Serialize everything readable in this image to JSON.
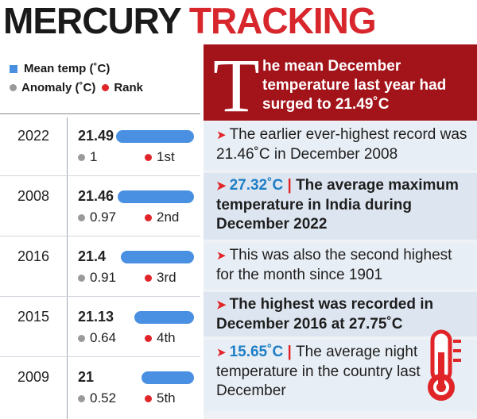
{
  "headline": {
    "word1": "MERCURY",
    "word2": "TRACKING"
  },
  "legend": {
    "mean": "Mean temp (˚C)",
    "anomaly": "Anomaly (˚C)",
    "rank": "Rank"
  },
  "colors": {
    "bar": "#4a90e2",
    "accent_red": "#e02428",
    "banner_red": "#a3131a",
    "anomaly_dot": "#9a9a9a",
    "highlight_blue": "#1f7ec5"
  },
  "chart_data": {
    "type": "bar",
    "categories": [
      "2022",
      "2008",
      "2016",
      "2015",
      "2009"
    ],
    "series": [
      {
        "name": "Mean temp (˚C)",
        "values": [
          21.49,
          21.46,
          21.4,
          21.13,
          21
        ],
        "labels": [
          "21.49",
          "21.46",
          "21.4",
          "21.13",
          "21"
        ]
      },
      {
        "name": "Anomaly (˚C)",
        "values": [
          1,
          0.97,
          0.91,
          0.64,
          0.52
        ],
        "labels": [
          "1",
          "0.97",
          "0.91",
          "0.64",
          "0.52"
        ]
      },
      {
        "name": "Rank",
        "labels": [
          "1st",
          "2nd",
          "3rd",
          "4th",
          "5th"
        ]
      }
    ]
  },
  "banner": {
    "drop_cap": "T",
    "text": "he mean December temperature last year had surged to 21.49˚C"
  },
  "facts": [
    {
      "text": "The earlier ever-highest record was 21.46˚C in December 2008"
    },
    {
      "highlight": "27.32˚C",
      "sep": "|",
      "text": "The average maximum temperature in India during December 2022"
    },
    {
      "text": "This was also the second highest for the month since 1901"
    },
    {
      "text": "The highest was recorded in December 2016 at 27.75˚C"
    },
    {
      "highlight": "15.65˚C",
      "sep": "|",
      "text": "The average night temperature in the country last December"
    }
  ],
  "icons": {
    "arrow": "red-triangle-arrow-icon",
    "thermometer": "thermometer-icon"
  }
}
